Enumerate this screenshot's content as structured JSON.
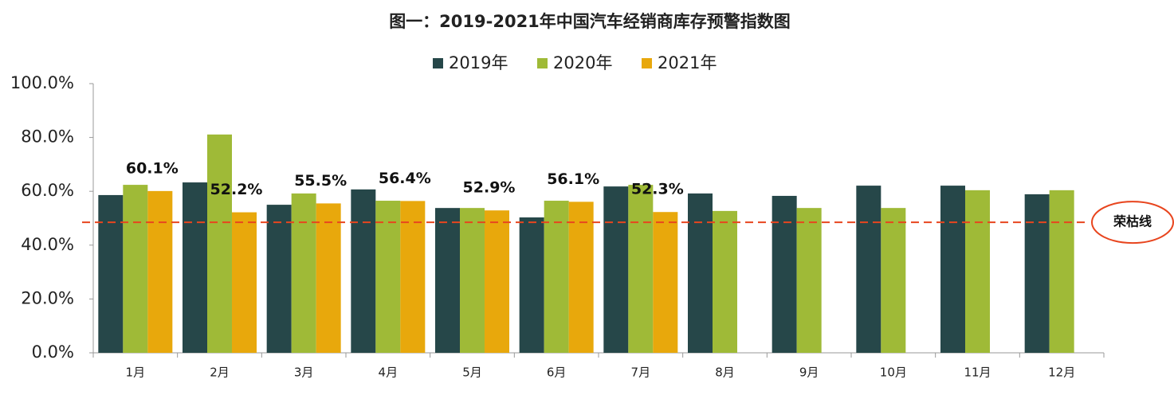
{
  "chart_data": {
    "type": "bar",
    "title": "图一：2019-2021年中国汽车经销商库存预警指数图",
    "categories": [
      "1月",
      "2月",
      "3月",
      "4月",
      "5月",
      "6月",
      "7月",
      "8月",
      "9月",
      "10月",
      "11月",
      "12月"
    ],
    "series": [
      {
        "name": "2019年",
        "color": "#264749",
        "values": [
          58.6,
          63.3,
          55.0,
          60.7,
          53.8,
          50.3,
          61.8,
          59.2,
          58.3,
          62.1,
          62.1,
          58.9
        ]
      },
      {
        "name": "2020年",
        "color": "#9fba37",
        "values": [
          62.4,
          81.1,
          59.2,
          56.5,
          53.8,
          56.5,
          62.4,
          52.7,
          53.8,
          53.8,
          60.4,
          60.4
        ]
      },
      {
        "name": "2021年",
        "color": "#e8a80c",
        "values": [
          60.1,
          52.2,
          55.5,
          56.4,
          52.9,
          56.1,
          52.3,
          null,
          null,
          null,
          null,
          null
        ],
        "value_labels": [
          "60.1%",
          "52.2%",
          "55.5%",
          "56.4%",
          "52.9%",
          "56.1%",
          "52.3%",
          null,
          null,
          null,
          null,
          null
        ]
      }
    ],
    "ylim": [
      0,
      100
    ],
    "yticks": [
      {
        "value": 0,
        "label": "0.0%"
      },
      {
        "value": 20,
        "label": "20.0%"
      },
      {
        "value": 40,
        "label": "40.0%"
      },
      {
        "value": 60,
        "label": "60.0%"
      },
      {
        "value": 80,
        "label": "80.0%"
      },
      {
        "value": 100,
        "label": "100.0%"
      }
    ],
    "grid": false,
    "legend": "top",
    "reference_line": {
      "value": 48.5,
      "label": "荣枯线",
      "color": "#e8451e"
    }
  }
}
